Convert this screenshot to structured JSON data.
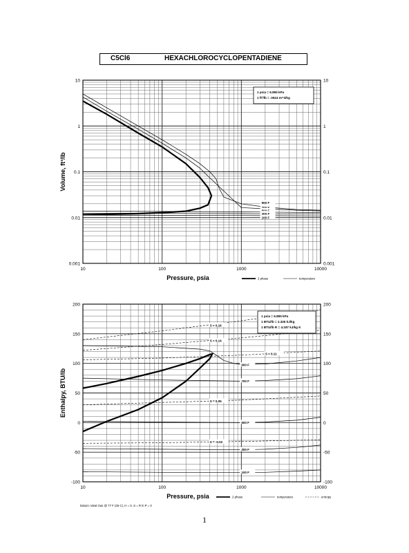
{
  "header": {
    "formula": "C5Cl6",
    "name": "HEXACHLOROCYCLOPENTADIENE"
  },
  "page_number": "1",
  "chart_data": [
    {
      "type": "line",
      "xscale": "log",
      "yscale": "log",
      "xlim": [
        10,
        10000
      ],
      "ylim": [
        0.001,
        10
      ],
      "xlabel": "Pressure,  psia",
      "ylabel": "Volume, ft^3/lb",
      "xticks": [
        "10",
        "100",
        "1000",
        "10000"
      ],
      "yticks": [
        "0.001",
        "0.01",
        "0.1",
        "1",
        "10"
      ],
      "conversions": [
        "1 psia = 6.895 kPa",
        "1 ft^3/lb = .0624 m^3/kg"
      ],
      "legend": [
        "2 phase",
        "temperature"
      ],
      "isotherm_labels": [
        "900 F",
        "700 F",
        "500 F",
        "300 F",
        "100 F"
      ],
      "series": [
        {
          "name": "2 phase",
          "x": [
            10,
            20,
            50,
            100,
            200,
            300,
            380,
            420,
            380,
            300,
            200,
            100,
            50,
            20,
            10
          ],
          "y": [
            3.5,
            1.8,
            0.7,
            0.35,
            0.15,
            0.075,
            0.045,
            0.03,
            0.019,
            0.016,
            0.0138,
            0.0128,
            0.0122,
            0.0118,
            0.0116
          ]
        },
        {
          "name": "900 F",
          "x": [
            10,
            20,
            50,
            100,
            200,
            300,
            400,
            480,
            520,
            600,
            1000,
            2000,
            5000,
            10000
          ],
          "y": [
            5,
            2.5,
            1,
            0.5,
            0.24,
            0.15,
            0.1,
            0.07,
            0.045,
            0.028,
            0.02,
            0.017,
            0.015,
            0.0145
          ]
        },
        {
          "name": "700 F",
          "x": [
            10,
            20,
            50,
            100,
            200,
            300,
            380,
            1000,
            2000,
            5000,
            10000
          ],
          "y": [
            4.3,
            2.1,
            0.85,
            0.42,
            0.2,
            0.12,
            0.08,
            0.0165,
            0.0155,
            0.0145,
            0.014
          ]
        },
        {
          "name": "500 F",
          "x": [
            10,
            100,
            1000,
            10000
          ],
          "y": [
            0.0138,
            0.0136,
            0.0133,
            0.0128
          ]
        },
        {
          "name": "300 F",
          "x": [
            10,
            100,
            1000,
            10000
          ],
          "y": [
            0.0125,
            0.0124,
            0.0122,
            0.0119
          ]
        },
        {
          "name": "100 F",
          "x": [
            10,
            100,
            1000,
            10000
          ],
          "y": [
            0.0113,
            0.0112,
            0.0111,
            0.0109
          ]
        }
      ]
    },
    {
      "type": "line",
      "xscale": "log",
      "yscale": "linear",
      "xlim": [
        10,
        10000
      ],
      "ylim": [
        -100,
        200
      ],
      "xlabel": "Pressure,  psia",
      "ylabel": "Enthalpy, BTU/lb",
      "xticks": [
        "10",
        "100",
        "1000",
        "10000"
      ],
      "yticks": [
        "200",
        "150",
        "100",
        "50",
        "0",
        "-50",
        "-100"
      ],
      "conversions": [
        "1 psia = 6.895 kPa",
        "1 BTU/lb = 2.326 kJ/kg",
        "1 BTU/lb R = 4.187 kJ/kg K"
      ],
      "legend": [
        "2 phase",
        "temperature",
        "entropy"
      ],
      "datum": "Datum: Ideal Gas @ 77 F (25 C), H = 0, S = R ln P = 0",
      "isotherm_labels": [
        "900 F",
        "700 F",
        "500 F",
        "300 F",
        "100 F"
      ],
      "entropy_labels": [
        "S = 0.16",
        "S = 0.14",
        "S = 0.11",
        "S = 0.05",
        "S = -0.02"
      ],
      "series": [
        {
          "name": "2 phase",
          "x": [
            10,
            20,
            50,
            100,
            200,
            300,
            400,
            430,
            400,
            300,
            200,
            100,
            50,
            20,
            10
          ],
          "y": [
            58,
            66,
            78,
            88,
            100,
            108,
            115,
            116,
            108,
            92,
            70,
            42,
            22,
            2,
            -15
          ]
        },
        {
          "name": "900 F",
          "x": [
            10,
            100,
            300,
            400,
            480,
            600,
            800,
            1000,
            2000,
            5000,
            10000
          ],
          "y": [
            130,
            128,
            124,
            121,
            114,
            105,
            100,
            98,
            99,
            104,
            110
          ]
        },
        {
          "name": "700 F",
          "x": [
            10,
            100,
            1000,
            2000,
            5000,
            10000
          ],
          "y": [
            75,
            72,
            70,
            71,
            74,
            79
          ]
        },
        {
          "name": "500 F",
          "x": [
            10,
            100,
            1000,
            2000,
            5000,
            10000
          ],
          "y": [
            2,
            1,
            0,
            1,
            4,
            9
          ]
        },
        {
          "name": "300 F",
          "x": [
            10,
            100,
            1000,
            2000,
            5000,
            10000
          ],
          "y": [
            -44,
            -45,
            -46,
            -45,
            -42,
            -38
          ]
        },
        {
          "name": "100 F",
          "x": [
            10,
            100,
            1000,
            2000,
            5000,
            10000
          ],
          "y": [
            -83,
            -84,
            -84,
            -84,
            -82,
            -80
          ]
        },
        {
          "name": "S = 0.16",
          "x": [
            10,
            100,
            1000,
            10000
          ],
          "y": [
            140,
            155,
            172,
            190
          ]
        },
        {
          "name": "S = 0.14",
          "x": [
            10,
            100,
            1000,
            10000
          ],
          "y": [
            122,
            132,
            143,
            156
          ]
        },
        {
          "name": "S = 0.11",
          "x": [
            10,
            100,
            1000,
            10000
          ],
          "y": [
            106,
            109,
            114,
            121
          ]
        },
        {
          "name": "S = 0.05",
          "x": [
            10,
            100,
            1000,
            10000
          ],
          "y": [
            30,
            34,
            38,
            45
          ]
        },
        {
          "name": "S = -0.02",
          "x": [
            10,
            100,
            1000,
            10000
          ],
          "y": [
            -35,
            -34,
            -32,
            -29
          ]
        }
      ]
    }
  ]
}
